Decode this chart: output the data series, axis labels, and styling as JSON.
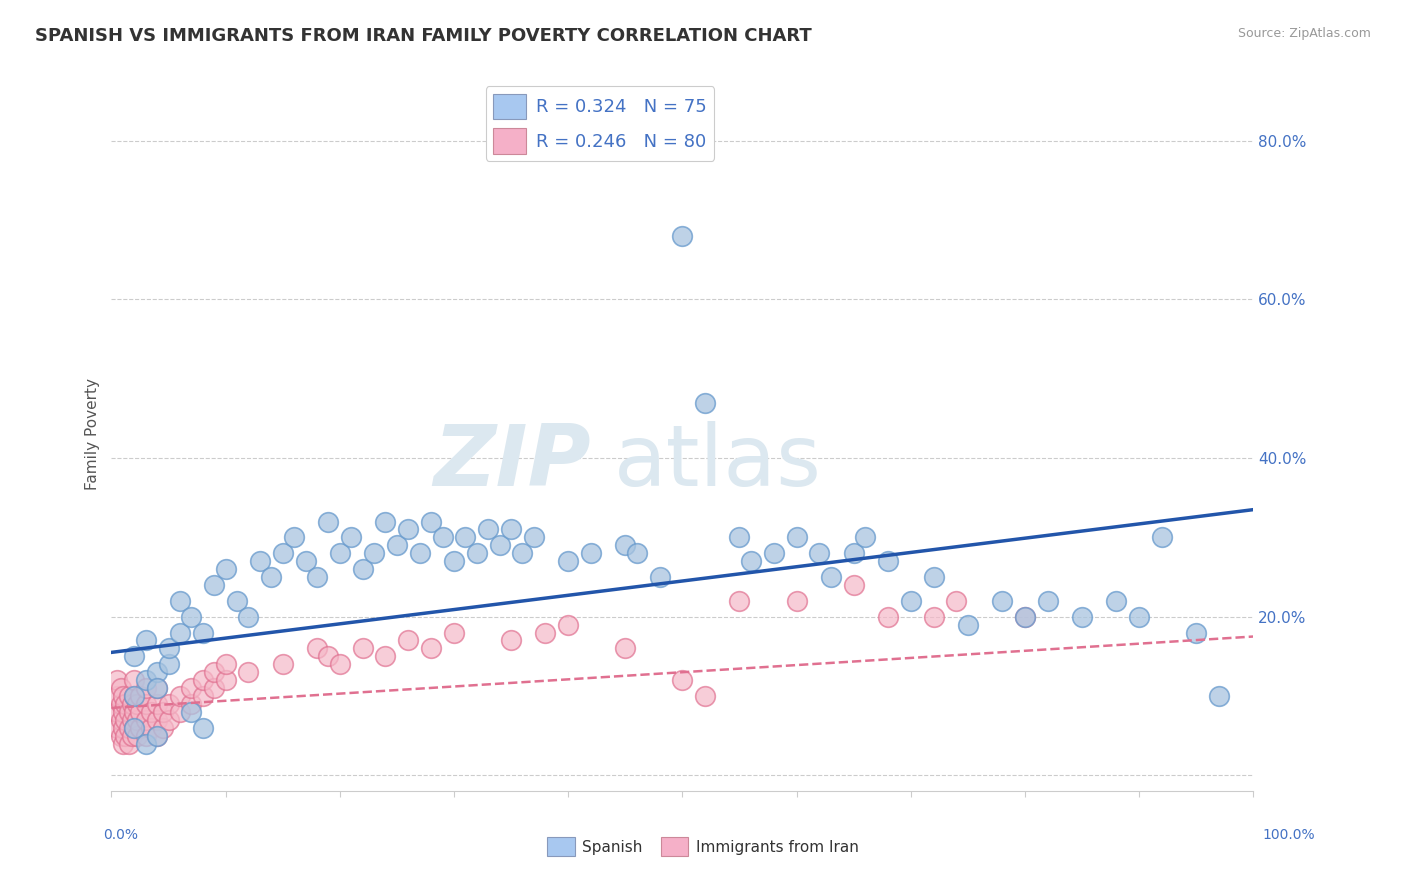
{
  "title": "SPANISH VS IMMIGRANTS FROM IRAN FAMILY POVERTY CORRELATION CHART",
  "source": "Source: ZipAtlas.com",
  "ylabel": "Family Poverty",
  "ytick_values": [
    0.0,
    0.2,
    0.4,
    0.6,
    0.8
  ],
  "xlim": [
    0,
    1.0
  ],
  "ylim": [
    -0.02,
    0.88
  ],
  "legend_label_spanish": "Spanish",
  "legend_label_iran": "Immigrants from Iran",
  "blue_marker_color": "#a8c4e0",
  "blue_marker_edge": "#6699cc",
  "pink_marker_color": "#f5b8c8",
  "pink_marker_edge": "#e07090",
  "blue_line_color": "#2255aa",
  "pink_line_color": "#e07090",
  "blue_scatter": [
    [
      0.02,
      0.15
    ],
    [
      0.03,
      0.12
    ],
    [
      0.02,
      0.1
    ],
    [
      0.04,
      0.13
    ],
    [
      0.03,
      0.17
    ],
    [
      0.05,
      0.14
    ],
    [
      0.04,
      0.11
    ],
    [
      0.05,
      0.16
    ],
    [
      0.06,
      0.18
    ],
    [
      0.06,
      0.22
    ],
    [
      0.07,
      0.2
    ],
    [
      0.08,
      0.18
    ],
    [
      0.09,
      0.24
    ],
    [
      0.1,
      0.26
    ],
    [
      0.11,
      0.22
    ],
    [
      0.12,
      0.2
    ],
    [
      0.13,
      0.27
    ],
    [
      0.14,
      0.25
    ],
    [
      0.15,
      0.28
    ],
    [
      0.16,
      0.3
    ],
    [
      0.17,
      0.27
    ],
    [
      0.18,
      0.25
    ],
    [
      0.19,
      0.32
    ],
    [
      0.2,
      0.28
    ],
    [
      0.21,
      0.3
    ],
    [
      0.22,
      0.26
    ],
    [
      0.23,
      0.28
    ],
    [
      0.24,
      0.32
    ],
    [
      0.25,
      0.29
    ],
    [
      0.26,
      0.31
    ],
    [
      0.27,
      0.28
    ],
    [
      0.28,
      0.32
    ],
    [
      0.29,
      0.3
    ],
    [
      0.3,
      0.27
    ],
    [
      0.31,
      0.3
    ],
    [
      0.32,
      0.28
    ],
    [
      0.33,
      0.31
    ],
    [
      0.34,
      0.29
    ],
    [
      0.35,
      0.31
    ],
    [
      0.36,
      0.28
    ],
    [
      0.37,
      0.3
    ],
    [
      0.4,
      0.27
    ],
    [
      0.42,
      0.28
    ],
    [
      0.45,
      0.29
    ],
    [
      0.46,
      0.28
    ],
    [
      0.48,
      0.25
    ],
    [
      0.5,
      0.68
    ],
    [
      0.52,
      0.47
    ],
    [
      0.55,
      0.3
    ],
    [
      0.56,
      0.27
    ],
    [
      0.58,
      0.28
    ],
    [
      0.6,
      0.3
    ],
    [
      0.62,
      0.28
    ],
    [
      0.63,
      0.25
    ],
    [
      0.65,
      0.28
    ],
    [
      0.66,
      0.3
    ],
    [
      0.68,
      0.27
    ],
    [
      0.7,
      0.22
    ],
    [
      0.72,
      0.25
    ],
    [
      0.75,
      0.19
    ],
    [
      0.78,
      0.22
    ],
    [
      0.8,
      0.2
    ],
    [
      0.82,
      0.22
    ],
    [
      0.85,
      0.2
    ],
    [
      0.88,
      0.22
    ],
    [
      0.9,
      0.2
    ],
    [
      0.92,
      0.3
    ],
    [
      0.95,
      0.18
    ],
    [
      0.97,
      0.1
    ],
    [
      0.02,
      0.06
    ],
    [
      0.03,
      0.04
    ],
    [
      0.04,
      0.05
    ],
    [
      0.07,
      0.08
    ],
    [
      0.08,
      0.06
    ]
  ],
  "pink_scatter": [
    [
      0.005,
      0.06
    ],
    [
      0.005,
      0.08
    ],
    [
      0.005,
      0.1
    ],
    [
      0.005,
      0.12
    ],
    [
      0.008,
      0.05
    ],
    [
      0.008,
      0.07
    ],
    [
      0.008,
      0.09
    ],
    [
      0.008,
      0.11
    ],
    [
      0.01,
      0.04
    ],
    [
      0.01,
      0.06
    ],
    [
      0.01,
      0.08
    ],
    [
      0.01,
      0.1
    ],
    [
      0.012,
      0.05
    ],
    [
      0.012,
      0.07
    ],
    [
      0.012,
      0.09
    ],
    [
      0.015,
      0.04
    ],
    [
      0.015,
      0.06
    ],
    [
      0.015,
      0.08
    ],
    [
      0.015,
      0.1
    ],
    [
      0.018,
      0.05
    ],
    [
      0.018,
      0.07
    ],
    [
      0.018,
      0.09
    ],
    [
      0.02,
      0.06
    ],
    [
      0.02,
      0.08
    ],
    [
      0.02,
      0.1
    ],
    [
      0.02,
      0.12
    ],
    [
      0.022,
      0.05
    ],
    [
      0.022,
      0.07
    ],
    [
      0.022,
      0.09
    ],
    [
      0.025,
      0.06
    ],
    [
      0.025,
      0.08
    ],
    [
      0.025,
      0.1
    ],
    [
      0.03,
      0.05
    ],
    [
      0.03,
      0.07
    ],
    [
      0.03,
      0.09
    ],
    [
      0.03,
      0.11
    ],
    [
      0.035,
      0.06
    ],
    [
      0.035,
      0.08
    ],
    [
      0.04,
      0.05
    ],
    [
      0.04,
      0.07
    ],
    [
      0.04,
      0.09
    ],
    [
      0.04,
      0.11
    ],
    [
      0.045,
      0.06
    ],
    [
      0.045,
      0.08
    ],
    [
      0.05,
      0.07
    ],
    [
      0.05,
      0.09
    ],
    [
      0.06,
      0.08
    ],
    [
      0.06,
      0.1
    ],
    [
      0.07,
      0.09
    ],
    [
      0.07,
      0.11
    ],
    [
      0.08,
      0.1
    ],
    [
      0.08,
      0.12
    ],
    [
      0.09,
      0.11
    ],
    [
      0.09,
      0.13
    ],
    [
      0.1,
      0.12
    ],
    [
      0.1,
      0.14
    ],
    [
      0.12,
      0.13
    ],
    [
      0.15,
      0.14
    ],
    [
      0.18,
      0.16
    ],
    [
      0.19,
      0.15
    ],
    [
      0.2,
      0.14
    ],
    [
      0.22,
      0.16
    ],
    [
      0.24,
      0.15
    ],
    [
      0.26,
      0.17
    ],
    [
      0.28,
      0.16
    ],
    [
      0.3,
      0.18
    ],
    [
      0.35,
      0.17
    ],
    [
      0.38,
      0.18
    ],
    [
      0.4,
      0.19
    ],
    [
      0.45,
      0.16
    ],
    [
      0.5,
      0.12
    ],
    [
      0.52,
      0.1
    ],
    [
      0.55,
      0.22
    ],
    [
      0.6,
      0.22
    ],
    [
      0.65,
      0.24
    ],
    [
      0.68,
      0.2
    ],
    [
      0.72,
      0.2
    ],
    [
      0.74,
      0.22
    ],
    [
      0.8,
      0.2
    ]
  ],
  "blue_trend_x": [
    0.0,
    1.0
  ],
  "blue_trend_y": [
    0.155,
    0.335
  ],
  "pink_trend_x": [
    0.0,
    1.0
  ],
  "pink_trend_y": [
    0.085,
    0.175
  ],
  "background_color": "#ffffff",
  "grid_color": "#cccccc",
  "watermark_zip": "ZIP",
  "watermark_atlas": "atlas",
  "watermark_color": "#dce8f0"
}
